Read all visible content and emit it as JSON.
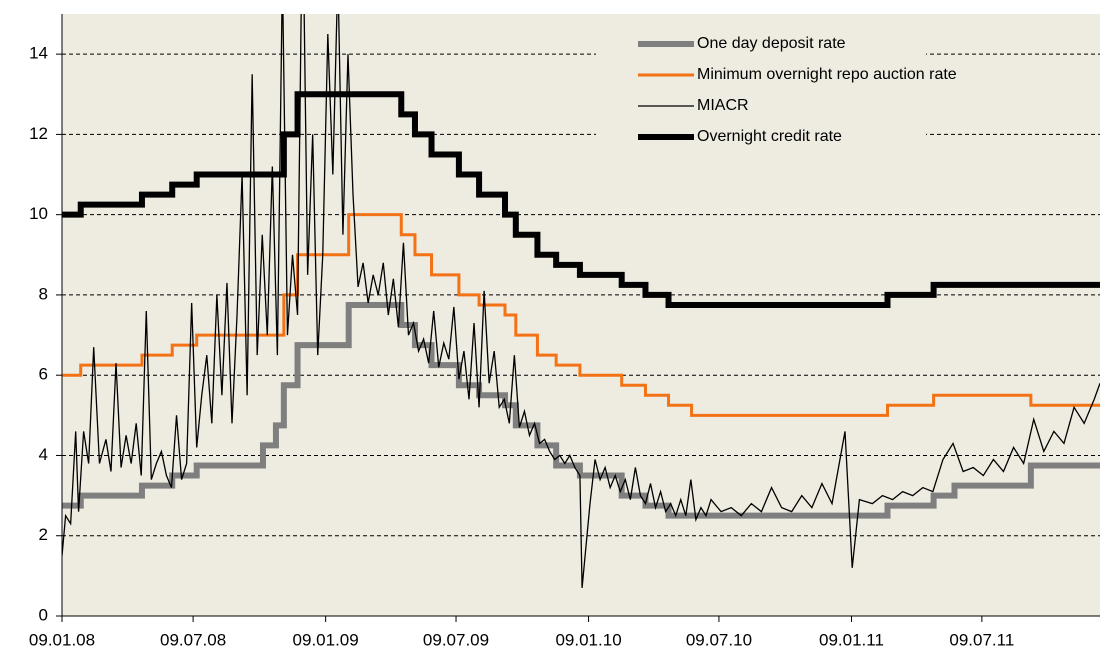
{
  "chart_data": {
    "type": "step-line",
    "xlim": [
      "2008-01-09",
      "2011-12-20"
    ],
    "ylim": [
      0,
      15
    ],
    "yticks": [
      0,
      2,
      4,
      6,
      8,
      10,
      12,
      14
    ],
    "xticks": [
      {
        "value": "2008-01-09",
        "label": "09.01.08"
      },
      {
        "value": "2008-07-09",
        "label": "09.07.08"
      },
      {
        "value": "2009-01-09",
        "label": "09.01.09"
      },
      {
        "value": "2009-07-09",
        "label": "09.07.09"
      },
      {
        "value": "2010-01-09",
        "label": "09.01.10"
      },
      {
        "value": "2010-07-09",
        "label": "09.07.10"
      },
      {
        "value": "2011-01-09",
        "label": "09.01.11"
      },
      {
        "value": "2011-07-09",
        "label": "09.07.11"
      }
    ],
    "grid": true,
    "legend": "top-right",
    "series": [
      {
        "name": "One day deposit rate",
        "color": "#7f7f7f",
        "width": 6,
        "step": true,
        "x": [
          "2008-01-09",
          "2008-02-04",
          "2008-04-29",
          "2008-06-10",
          "2008-07-14",
          "2008-10-14",
          "2008-11-01",
          "2008-11-12",
          "2008-12-01",
          "2009-02-10",
          "2009-04-24",
          "2009-05-13",
          "2009-06-05",
          "2009-07-13",
          "2009-08-10",
          "2009-09-15",
          "2009-09-30",
          "2009-10-30",
          "2009-11-25",
          "2009-12-28",
          "2010-02-24",
          "2010-03-29",
          "2010-04-30",
          "2011-02-28",
          "2011-05-03",
          "2011-06-01",
          "2011-09-15",
          "2011-12-20"
        ],
        "values": [
          2.75,
          3,
          3.25,
          3.5,
          3.75,
          4.25,
          4.75,
          5.75,
          6.75,
          7.75,
          7.25,
          6.75,
          6.25,
          5.75,
          5.5,
          5.25,
          4.75,
          4.25,
          3.75,
          3.5,
          3,
          2.75,
          2.5,
          2.75,
          3,
          3.25,
          3.75,
          3.75
        ]
      },
      {
        "name": "Minimum overnight repo auction rate",
        "color": "#f47216",
        "width": 3,
        "step": true,
        "x": [
          "2008-01-09",
          "2008-02-04",
          "2008-04-29",
          "2008-06-10",
          "2008-07-14",
          "2008-11-12",
          "2008-12-01",
          "2009-02-10",
          "2009-04-24",
          "2009-05-13",
          "2009-06-05",
          "2009-07-13",
          "2009-08-10",
          "2009-09-15",
          "2009-09-30",
          "2009-10-30",
          "2009-11-25",
          "2009-12-28",
          "2010-02-24",
          "2010-03-29",
          "2010-04-30",
          "2010-06-01",
          "2011-02-28",
          "2011-05-03",
          "2011-09-15",
          "2011-12-20"
        ],
        "values": [
          6,
          6.25,
          6.5,
          6.75,
          7,
          8,
          9,
          10,
          9.5,
          9,
          8.5,
          8,
          7.75,
          7.5,
          7,
          6.5,
          6.25,
          6,
          5.75,
          5.5,
          5.25,
          5,
          5.25,
          5.5,
          5.25,
          5.25
        ]
      },
      {
        "name": "MIACR",
        "color": "#000000",
        "width": 1.3,
        "step": false,
        "x": [
          "2008-01-09",
          "2008-01-14",
          "2008-01-21",
          "2008-01-28",
          "2008-02-01",
          "2008-02-08",
          "2008-02-15",
          "2008-02-22",
          "2008-03-01",
          "2008-03-10",
          "2008-03-17",
          "2008-03-24",
          "2008-03-31",
          "2008-04-07",
          "2008-04-14",
          "2008-04-21",
          "2008-04-28",
          "2008-05-05",
          "2008-05-12",
          "2008-05-19",
          "2008-05-26",
          "2008-06-02",
          "2008-06-09",
          "2008-06-16",
          "2008-06-23",
          "2008-06-30",
          "2008-07-07",
          "2008-07-14",
          "2008-07-21",
          "2008-07-28",
          "2008-08-04",
          "2008-08-11",
          "2008-08-18",
          "2008-08-25",
          "2008-09-01",
          "2008-09-08",
          "2008-09-15",
          "2008-09-22",
          "2008-09-29",
          "2008-10-06",
          "2008-10-13",
          "2008-10-20",
          "2008-10-27",
          "2008-11-03",
          "2008-11-10",
          "2008-11-17",
          "2008-11-24",
          "2008-12-01",
          "2008-12-08",
          "2008-12-15",
          "2008-12-22",
          "2008-12-29",
          "2009-01-05",
          "2009-01-12",
          "2009-01-19",
          "2009-01-26",
          "2009-02-02",
          "2009-02-09",
          "2009-02-16",
          "2009-02-23",
          "2009-03-02",
          "2009-03-09",
          "2009-03-16",
          "2009-03-23",
          "2009-03-30",
          "2009-04-06",
          "2009-04-13",
          "2009-04-20",
          "2009-04-27",
          "2009-05-04",
          "2009-05-11",
          "2009-05-18",
          "2009-05-25",
          "2009-06-01",
          "2009-06-08",
          "2009-06-15",
          "2009-06-22",
          "2009-06-29",
          "2009-07-06",
          "2009-07-13",
          "2009-07-20",
          "2009-07-27",
          "2009-08-03",
          "2009-08-10",
          "2009-08-17",
          "2009-08-24",
          "2009-08-31",
          "2009-09-07",
          "2009-09-14",
          "2009-09-21",
          "2009-09-28",
          "2009-10-05",
          "2009-10-12",
          "2009-10-19",
          "2009-10-26",
          "2009-11-02",
          "2009-11-09",
          "2009-11-16",
          "2009-11-23",
          "2009-11-30",
          "2009-12-07",
          "2009-12-14",
          "2009-12-21",
          "2009-12-28",
          "2009-12-31",
          "2010-01-11",
          "2010-01-18",
          "2010-01-25",
          "2010-02-01",
          "2010-02-08",
          "2010-02-15",
          "2010-02-22",
          "2010-03-01",
          "2010-03-08",
          "2010-03-15",
          "2010-03-22",
          "2010-03-29",
          "2010-04-05",
          "2010-04-12",
          "2010-04-19",
          "2010-04-26",
          "2010-05-03",
          "2010-05-10",
          "2010-05-17",
          "2010-05-24",
          "2010-05-31",
          "2010-06-07",
          "2010-06-14",
          "2010-06-21",
          "2010-06-28",
          "2010-07-12",
          "2010-07-26",
          "2010-08-09",
          "2010-08-23",
          "2010-09-06",
          "2010-09-20",
          "2010-10-04",
          "2010-10-18",
          "2010-11-01",
          "2010-11-15",
          "2010-11-29",
          "2010-12-13",
          "2010-12-31",
          "2011-01-10",
          "2011-01-20",
          "2011-02-07",
          "2011-02-21",
          "2011-03-07",
          "2011-03-21",
          "2011-04-04",
          "2011-04-18",
          "2011-05-02",
          "2011-05-16",
          "2011-05-30",
          "2011-06-13",
          "2011-06-27",
          "2011-07-11",
          "2011-07-25",
          "2011-08-08",
          "2011-08-22",
          "2011-09-05",
          "2011-09-19",
          "2011-10-03",
          "2011-10-17",
          "2011-10-31",
          "2011-11-14",
          "2011-11-28",
          "2011-12-12",
          "2011-12-20"
        ],
        "values": [
          1.5,
          2.5,
          2.3,
          4.6,
          2.6,
          4.6,
          3.8,
          6.7,
          3.8,
          4.4,
          3.6,
          6.3,
          3.7,
          4.5,
          3.8,
          4.8,
          3.5,
          7.6,
          3.4,
          3.8,
          4.1,
          3.5,
          3.2,
          5.0,
          3.4,
          3.8,
          7.8,
          4.2,
          5.5,
          6.5,
          4.8,
          8.0,
          5.5,
          8.3,
          4.8,
          7.5,
          11,
          5.5,
          13.5,
          6.5,
          9.5,
          7.0,
          11.2,
          6.5,
          16,
          7.0,
          9.0,
          7.5,
          18,
          8.5,
          12,
          6.5,
          9,
          14.5,
          11,
          16,
          9.5,
          14,
          10.5,
          8.2,
          8.8,
          7.8,
          8.5,
          8.0,
          8.8,
          7.5,
          8.4,
          7.2,
          9.3,
          7.0,
          7.3,
          6.6,
          6.9,
          6.3,
          7.6,
          6.2,
          6.8,
          6.4,
          7.7,
          5.9,
          6.6,
          5.4,
          7.3,
          5.2,
          8.1,
          5.8,
          6.6,
          5.2,
          5.4,
          4.8,
          6.5,
          4.7,
          5.1,
          4.5,
          4.8,
          4.3,
          4.4,
          4.1,
          3.9,
          4.0,
          3.8,
          4.0,
          3.7,
          3.5,
          0.7,
          2.8,
          3.9,
          3.4,
          3.7,
          3.2,
          3.5,
          3.1,
          3.4,
          2.9,
          3.7,
          3.0,
          2.8,
          3.3,
          2.7,
          3.1,
          2.6,
          2.8,
          2.5,
          2.9,
          2.5,
          3.4,
          2.4,
          2.7,
          2.5,
          2.9,
          2.6,
          2.7,
          2.5,
          2.8,
          2.6,
          3.2,
          2.7,
          2.6,
          3.0,
          2.7,
          3.3,
          2.8,
          4.6,
          1.2,
          2.9,
          2.8,
          3.0,
          2.9,
          3.1,
          3.0,
          3.2,
          3.1,
          3.9,
          4.3,
          3.6,
          3.7,
          3.5,
          3.9,
          3.6,
          4.2,
          3.8,
          4.9,
          4.1,
          4.6,
          4.3,
          5.2,
          4.8,
          5.4,
          5.8
        ]
      },
      {
        "name": "Overnight credit rate",
        "color": "#000000",
        "width": 6,
        "step": true,
        "x": [
          "2008-01-09",
          "2008-02-04",
          "2008-04-29",
          "2008-06-10",
          "2008-07-14",
          "2008-11-12",
          "2008-12-01",
          "2009-04-24",
          "2009-05-13",
          "2009-06-05",
          "2009-07-13",
          "2009-08-10",
          "2009-09-15",
          "2009-09-30",
          "2009-10-30",
          "2009-11-25",
          "2009-12-28",
          "2010-02-24",
          "2010-03-29",
          "2010-04-30",
          "2011-02-28",
          "2011-05-03",
          "2011-12-20"
        ],
        "values": [
          10,
          10.25,
          10.5,
          10.75,
          11,
          12,
          13,
          12.5,
          12,
          11.5,
          11,
          10.5,
          10,
          9.5,
          9,
          8.75,
          8.5,
          8.25,
          8,
          7.75,
          8,
          8.25,
          8.25
        ]
      }
    ]
  }
}
